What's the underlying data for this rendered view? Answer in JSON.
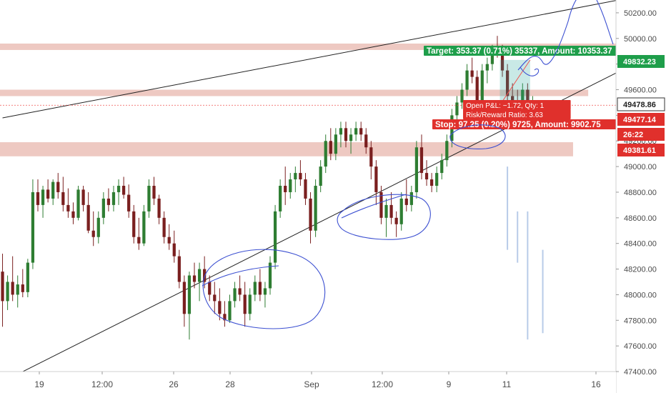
{
  "chart_data": {
    "type": "candlestick",
    "y_range": [
      47400,
      50300
    ],
    "y_ticks": [
      "47400.00",
      "47600.00",
      "47800.00",
      "48000.00",
      "48200.00",
      "48400.00",
      "48600.00",
      "48800.00",
      "49000.00",
      "49200.00",
      "49400.00",
      "49600.00",
      "49800.00",
      "50000.00",
      "50200.00"
    ],
    "x_ticks": [
      "19",
      "12:00",
      "26",
      "28",
      "Sep",
      "12:00",
      "9",
      "11",
      "16"
    ],
    "bars": [
      [
        48180,
        48320,
        47750,
        47950
      ],
      [
        47950,
        48150,
        47880,
        48100
      ],
      [
        48100,
        48300,
        47950,
        48000
      ],
      [
        48000,
        48150,
        47900,
        48080
      ],
      [
        48080,
        48200,
        47980,
        48020
      ],
      [
        48020,
        48280,
        47980,
        48250
      ],
      [
        48250,
        48900,
        48200,
        48800
      ],
      [
        48800,
        48900,
        48650,
        48700
      ],
      [
        48700,
        48850,
        48600,
        48820
      ],
      [
        48820,
        48900,
        48720,
        48750
      ],
      [
        48750,
        48900,
        48700,
        48880
      ],
      [
        48880,
        48950,
        48750,
        48800
      ],
      [
        48800,
        48920,
        48650,
        48700
      ],
      [
        48700,
        48830,
        48600,
        48650
      ],
      [
        48650,
        48720,
        48550,
        48600
      ],
      [
        48600,
        48850,
        48580,
        48820
      ],
      [
        48820,
        48850,
        48650,
        48700
      ],
      [
        48700,
        48800,
        48480,
        48500
      ],
      [
        48500,
        48650,
        48380,
        48450
      ],
      [
        48450,
        48650,
        48400,
        48600
      ],
      [
        48600,
        48800,
        48550,
        48750
      ],
      [
        48750,
        48830,
        48650,
        48700
      ],
      [
        48700,
        48850,
        48650,
        48800
      ],
      [
        48800,
        48900,
        48700,
        48850
      ],
      [
        48850,
        48920,
        48750,
        48780
      ],
      [
        48780,
        48860,
        48600,
        48650
      ],
      [
        48650,
        48700,
        48400,
        48450
      ],
      [
        48450,
        48600,
        48350,
        48400
      ],
      [
        48400,
        48700,
        48380,
        48650
      ],
      [
        48650,
        48900,
        48600,
        48850
      ],
      [
        48850,
        48920,
        48700,
        48750
      ],
      [
        48750,
        48780,
        48550,
        48600
      ],
      [
        48600,
        48650,
        48400,
        48450
      ],
      [
        48450,
        48550,
        48350,
        48400
      ],
      [
        48400,
        48500,
        48250,
        48300
      ],
      [
        48300,
        48350,
        48050,
        48100
      ],
      [
        48100,
        48150,
        47750,
        47850
      ],
      [
        47850,
        48180,
        47650,
        48150
      ],
      [
        48150,
        48250,
        48050,
        48100
      ],
      [
        48100,
        48250,
        47950,
        48200
      ],
      [
        48200,
        48300,
        48050,
        48100
      ],
      [
        48100,
        48150,
        47950,
        48000
      ],
      [
        48000,
        48100,
        47850,
        47950
      ],
      [
        47950,
        48050,
        47800,
        47850
      ],
      [
        47850,
        47950,
        47750,
        47800
      ],
      [
        47800,
        48000,
        47780,
        47950
      ],
      [
        47950,
        48100,
        47900,
        48050
      ],
      [
        48050,
        48150,
        47950,
        48000
      ],
      [
        48000,
        48100,
        47750,
        47850
      ],
      [
        47850,
        48050,
        47800,
        48000
      ],
      [
        48000,
        48150,
        47950,
        48100
      ],
      [
        48100,
        48200,
        47950,
        48000
      ],
      [
        48000,
        48100,
        47900,
        48050
      ],
      [
        48050,
        48300,
        48000,
        48250
      ],
      [
        48250,
        48700,
        48200,
        48650
      ],
      [
        48650,
        48900,
        48600,
        48850
      ],
      [
        48850,
        49000,
        48700,
        48800
      ],
      [
        48800,
        48950,
        48750,
        48900
      ],
      [
        48900,
        49000,
        48800,
        48950
      ],
      [
        48950,
        49050,
        48850,
        48900
      ],
      [
        48900,
        48950,
        48700,
        48750
      ],
      [
        48750,
        48800,
        48400,
        48500
      ],
      [
        48500,
        48900,
        48450,
        48850
      ],
      [
        48850,
        49050,
        48800,
        49000
      ],
      [
        49000,
        49250,
        48950,
        49200
      ],
      [
        49200,
        49300,
        49050,
        49100
      ],
      [
        49100,
        49300,
        49050,
        49250
      ],
      [
        49250,
        49350,
        49150,
        49300
      ],
      [
        49300,
        49350,
        49150,
        49200
      ],
      [
        49200,
        49300,
        49100,
        49250
      ],
      [
        49250,
        49350,
        49200,
        49300
      ],
      [
        49300,
        49350,
        49200,
        49250
      ],
      [
        49250,
        49300,
        49100,
        49150
      ],
      [
        49150,
        49200,
        48900,
        49000
      ],
      [
        49000,
        49050,
        48700,
        48800
      ],
      [
        48800,
        48850,
        48550,
        48600
      ],
      [
        48600,
        48750,
        48450,
        48700
      ],
      [
        48700,
        48800,
        48550,
        48600
      ],
      [
        48600,
        48650,
        48450,
        48550
      ],
      [
        48550,
        48800,
        48500,
        48750
      ],
      [
        48750,
        48900,
        48650,
        48700
      ],
      [
        48700,
        48850,
        48650,
        48800
      ],
      [
        48800,
        49200,
        48750,
        49150
      ],
      [
        49150,
        49250,
        48900,
        48950
      ],
      [
        48950,
        49050,
        48850,
        48900
      ],
      [
        48900,
        48950,
        48800,
        48850
      ],
      [
        48850,
        49000,
        48800,
        48950
      ],
      [
        48950,
        49100,
        48900,
        49050
      ],
      [
        49050,
        49250,
        49000,
        49200
      ],
      [
        49200,
        49450,
        49150,
        49400
      ],
      [
        49400,
        49550,
        49350,
        49500
      ],
      [
        49500,
        49650,
        49450,
        49600
      ],
      [
        49600,
        49800,
        49550,
        49750
      ],
      [
        49750,
        49850,
        49650,
        49700
      ],
      [
        49700,
        49750,
        49450,
        49500
      ],
      [
        49500,
        49800,
        49450,
        49750
      ],
      [
        49750,
        49850,
        49650,
        49800
      ],
      [
        49800,
        49950,
        49750,
        49900
      ],
      [
        49900,
        50020,
        49850,
        49880
      ],
      [
        49880,
        49950,
        49700,
        49750
      ],
      [
        49750,
        49800,
        49500,
        49550
      ],
      [
        49550,
        49650,
        49450,
        49500
      ],
      [
        49500,
        49600,
        49400,
        49450
      ],
      [
        49450,
        49650,
        49350,
        49600
      ],
      [
        49600,
        49650,
        49380,
        49420
      ],
      [
        49420,
        49550,
        49350,
        49478.86
      ]
    ],
    "channel_upper": [
      [
        0,
        49380
      ],
      [
        122,
        50300
      ]
    ],
    "channel_lower": [
      [
        0,
        47320
      ],
      [
        122,
        49740
      ]
    ],
    "zones": [
      {
        "y1": 49910,
        "y2": 49960,
        "x_end": 122
      },
      {
        "y1": 49550,
        "y2": 49600,
        "x_end": 116
      },
      {
        "y1": 49080,
        "y2": 49190,
        "x_end": 113
      }
    ],
    "position": {
      "entry": 49479,
      "target": 49832.23,
      "stop": 49381.61,
      "x_start": 98.5,
      "x_end": 104.5,
      "target_label": "Target: 353.37 (0.71%) 35337, Amount: 10353.37",
      "pnl_label": "Open P&L: −1.72, Qty: 1",
      "rr_label": "Risk/Reward Ratio: 3.63",
      "stop_label": "Stop: 97.25 (0.20%) 9725, Amount: 9902.75"
    },
    "projected_bars": [
      [
        100,
        49000,
        48350
      ],
      [
        102,
        48650,
        48250
      ],
      [
        104,
        48650,
        47650
      ],
      [
        107,
        48350,
        47700
      ]
    ],
    "price_labels": [
      {
        "text": "49832.23",
        "y": 49832.23,
        "color": "#1e9e4a"
      },
      {
        "text": "49478.86",
        "y": 49478.86,
        "color": "#ffffff"
      },
      {
        "text": "49477.14",
        "y": 49477.14,
        "color": "#e0302c"
      },
      {
        "text": "26:22",
        "y": 49400,
        "color": "#e0302c"
      },
      {
        "text": "49381.61",
        "y": 49381.61,
        "color": "#e0302c"
      }
    ],
    "colors": {
      "up": "#26a69a",
      "down": "#ef5350",
      "candle_up": "#2e7d32",
      "candle_down": "#7a1f1f",
      "zone": "#e8b7ad",
      "channel": "#222222",
      "drawing": "#3b4fd1",
      "projection": "#b8cbe8"
    }
  }
}
